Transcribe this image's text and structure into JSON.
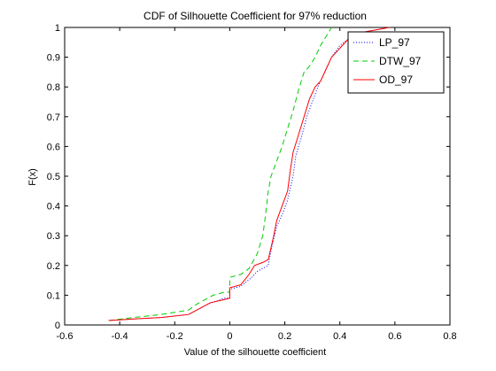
{
  "chart_data": {
    "type": "line",
    "title": "CDF of Silhouette Coefficient for 97% reduction",
    "xlabel": "Value of the silhouette coefficient",
    "ylabel": "F(x)",
    "xlim": [
      -0.6,
      0.8
    ],
    "ylim": [
      0,
      1
    ],
    "x_ticks": [
      "-0.6",
      "-0.4",
      "-0.2",
      "0",
      "0.2",
      "0.4",
      "0.6",
      "0.8"
    ],
    "y_ticks": [
      "0",
      "0.1",
      "0.2",
      "0.3",
      "0.4",
      "0.5",
      "0.6",
      "0.7",
      "0.8",
      "0.9",
      "1"
    ],
    "grid": false,
    "legend_position": "top-right",
    "series": [
      {
        "name": "LP_97",
        "color": "#0000ff",
        "style": "dotted",
        "points": [
          [
            -0.44,
            0.015
          ],
          [
            -0.35,
            0.02
          ],
          [
            -0.25,
            0.025
          ],
          [
            -0.15,
            0.035
          ],
          [
            -0.08,
            0.07
          ],
          [
            -0.02,
            0.09
          ],
          [
            0.0,
            0.09
          ],
          [
            0.0,
            0.12
          ],
          [
            0.04,
            0.13
          ],
          [
            0.08,
            0.16
          ],
          [
            0.1,
            0.18
          ],
          [
            0.12,
            0.19
          ],
          [
            0.14,
            0.2
          ],
          [
            0.15,
            0.25
          ],
          [
            0.16,
            0.29
          ],
          [
            0.17,
            0.33
          ],
          [
            0.19,
            0.37
          ],
          [
            0.21,
            0.42
          ],
          [
            0.23,
            0.5
          ],
          [
            0.24,
            0.57
          ],
          [
            0.26,
            0.63
          ],
          [
            0.28,
            0.7
          ],
          [
            0.3,
            0.75
          ],
          [
            0.32,
            0.8
          ],
          [
            0.34,
            0.84
          ],
          [
            0.35,
            0.86
          ],
          [
            0.37,
            0.9
          ],
          [
            0.4,
            0.94
          ],
          [
            0.43,
            0.96
          ],
          [
            0.46,
            0.98
          ],
          [
            0.52,
            0.99
          ],
          [
            0.58,
            1.0
          ]
        ]
      },
      {
        "name": "DTW_97",
        "color": "#00cc00",
        "style": "dashed",
        "points": [
          [
            -0.44,
            0.015
          ],
          [
            -0.35,
            0.025
          ],
          [
            -0.25,
            0.035
          ],
          [
            -0.15,
            0.05
          ],
          [
            -0.12,
            0.07
          ],
          [
            -0.06,
            0.1
          ],
          [
            -0.02,
            0.11
          ],
          [
            0.0,
            0.11
          ],
          [
            0.0,
            0.16
          ],
          [
            0.04,
            0.17
          ],
          [
            0.07,
            0.19
          ],
          [
            0.1,
            0.24
          ],
          [
            0.12,
            0.3
          ],
          [
            0.13,
            0.37
          ],
          [
            0.14,
            0.45
          ],
          [
            0.15,
            0.5
          ],
          [
            0.17,
            0.55
          ],
          [
            0.19,
            0.6
          ],
          [
            0.21,
            0.66
          ],
          [
            0.23,
            0.72
          ],
          [
            0.25,
            0.79
          ],
          [
            0.27,
            0.85
          ],
          [
            0.29,
            0.87
          ],
          [
            0.31,
            0.9
          ],
          [
            0.33,
            0.94
          ],
          [
            0.35,
            0.97
          ],
          [
            0.37,
            1.0
          ]
        ]
      },
      {
        "name": "OD_97",
        "color": "#ff0000",
        "style": "solid",
        "points": [
          [
            -0.44,
            0.015
          ],
          [
            -0.35,
            0.02
          ],
          [
            -0.25,
            0.025
          ],
          [
            -0.15,
            0.035
          ],
          [
            -0.1,
            0.06
          ],
          [
            -0.07,
            0.075
          ],
          [
            -0.02,
            0.085
          ],
          [
            0.0,
            0.09
          ],
          [
            0.0,
            0.125
          ],
          [
            0.04,
            0.135
          ],
          [
            0.07,
            0.17
          ],
          [
            0.09,
            0.2
          ],
          [
            0.12,
            0.21
          ],
          [
            0.14,
            0.22
          ],
          [
            0.15,
            0.26
          ],
          [
            0.16,
            0.3
          ],
          [
            0.17,
            0.35
          ],
          [
            0.19,
            0.4
          ],
          [
            0.21,
            0.45
          ],
          [
            0.22,
            0.52
          ],
          [
            0.23,
            0.58
          ],
          [
            0.25,
            0.64
          ],
          [
            0.27,
            0.7
          ],
          [
            0.29,
            0.76
          ],
          [
            0.31,
            0.8
          ],
          [
            0.33,
            0.82
          ],
          [
            0.35,
            0.86
          ],
          [
            0.37,
            0.9
          ],
          [
            0.4,
            0.93
          ],
          [
            0.43,
            0.96
          ],
          [
            0.46,
            0.98
          ],
          [
            0.52,
            0.99
          ],
          [
            0.58,
            1.0
          ]
        ]
      }
    ]
  }
}
